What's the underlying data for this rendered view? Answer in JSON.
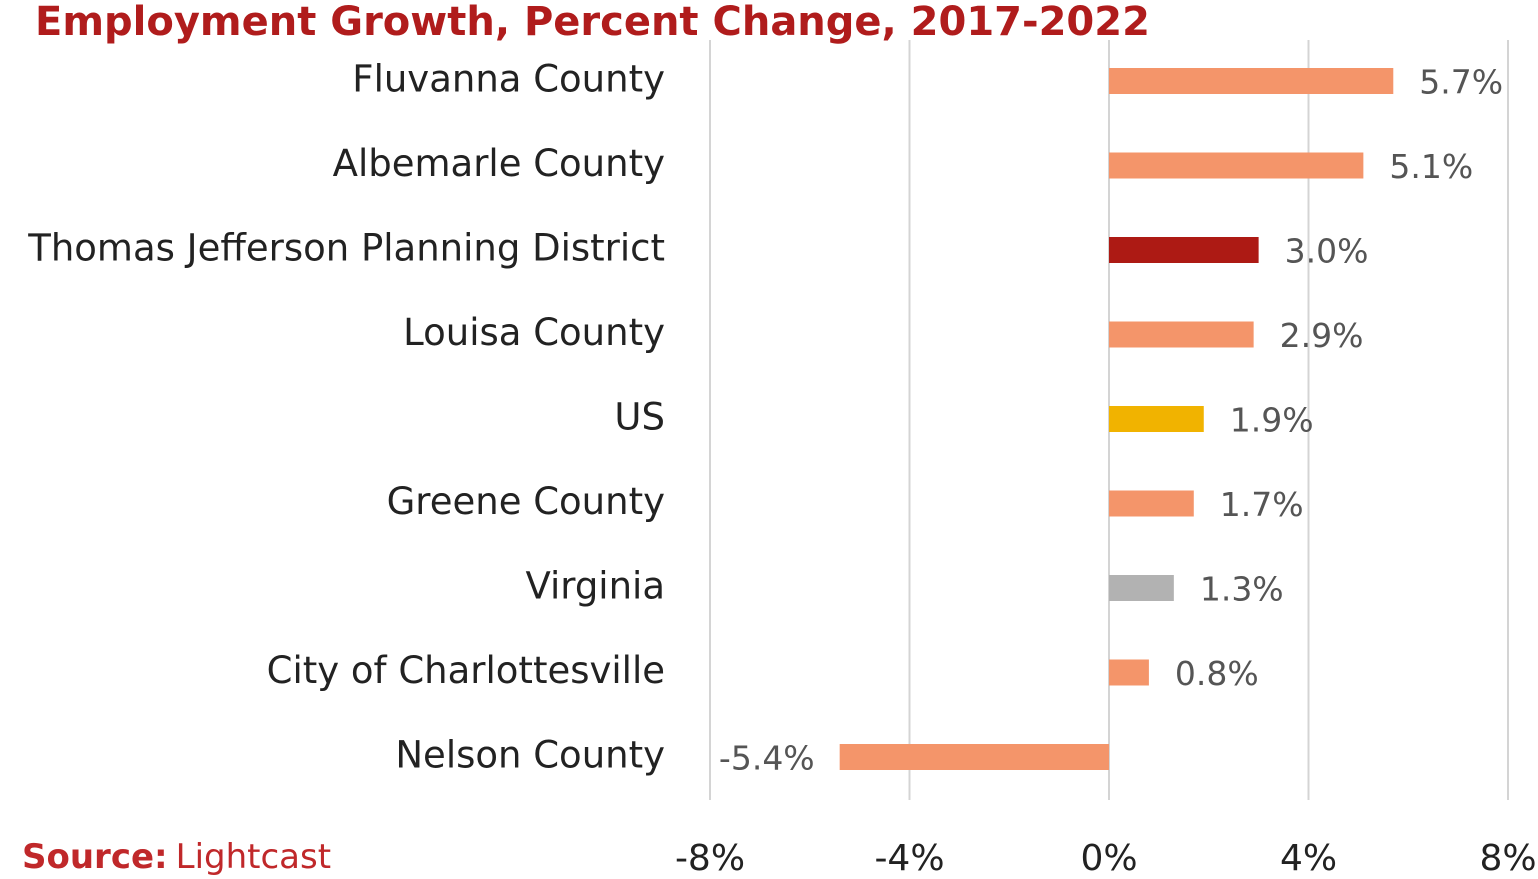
{
  "chart_data": {
    "type": "bar",
    "orientation": "horizontal",
    "title": "Employment Growth, Percent Change, 2017-2022",
    "source_label": "Source:",
    "source": "Lightcast",
    "categories": [
      "Fluvanna County",
      "Albemarle County",
      "Thomas Jefferson Planning District",
      "Louisa County",
      "US",
      "Greene County",
      "Virginia",
      "City of Charlottesville",
      "Nelson County"
    ],
    "values": [
      5.7,
      5.1,
      3.0,
      2.9,
      1.9,
      1.7,
      1.3,
      0.8,
      -5.4
    ],
    "value_labels": [
      "5.7%",
      "5.1%",
      "3.0%",
      "2.9%",
      "1.9%",
      "1.7%",
      "1.3%",
      "0.8%",
      "-5.4%"
    ],
    "colors": [
      "#f4956a",
      "#f4956a",
      "#ad1a14",
      "#f4956a",
      "#f1b300",
      "#f4956a",
      "#b2b2b2",
      "#f4956a",
      "#f4956a"
    ],
    "xlim": [
      -8,
      8
    ],
    "xticks": [
      {
        "value": -8,
        "label": "-8%"
      },
      {
        "value": -4,
        "label": "-4%"
      },
      {
        "value": 0,
        "label": "0%"
      },
      {
        "value": 4,
        "label": "4%"
      },
      {
        "value": 8,
        "label": "8%"
      }
    ],
    "grid": true
  }
}
